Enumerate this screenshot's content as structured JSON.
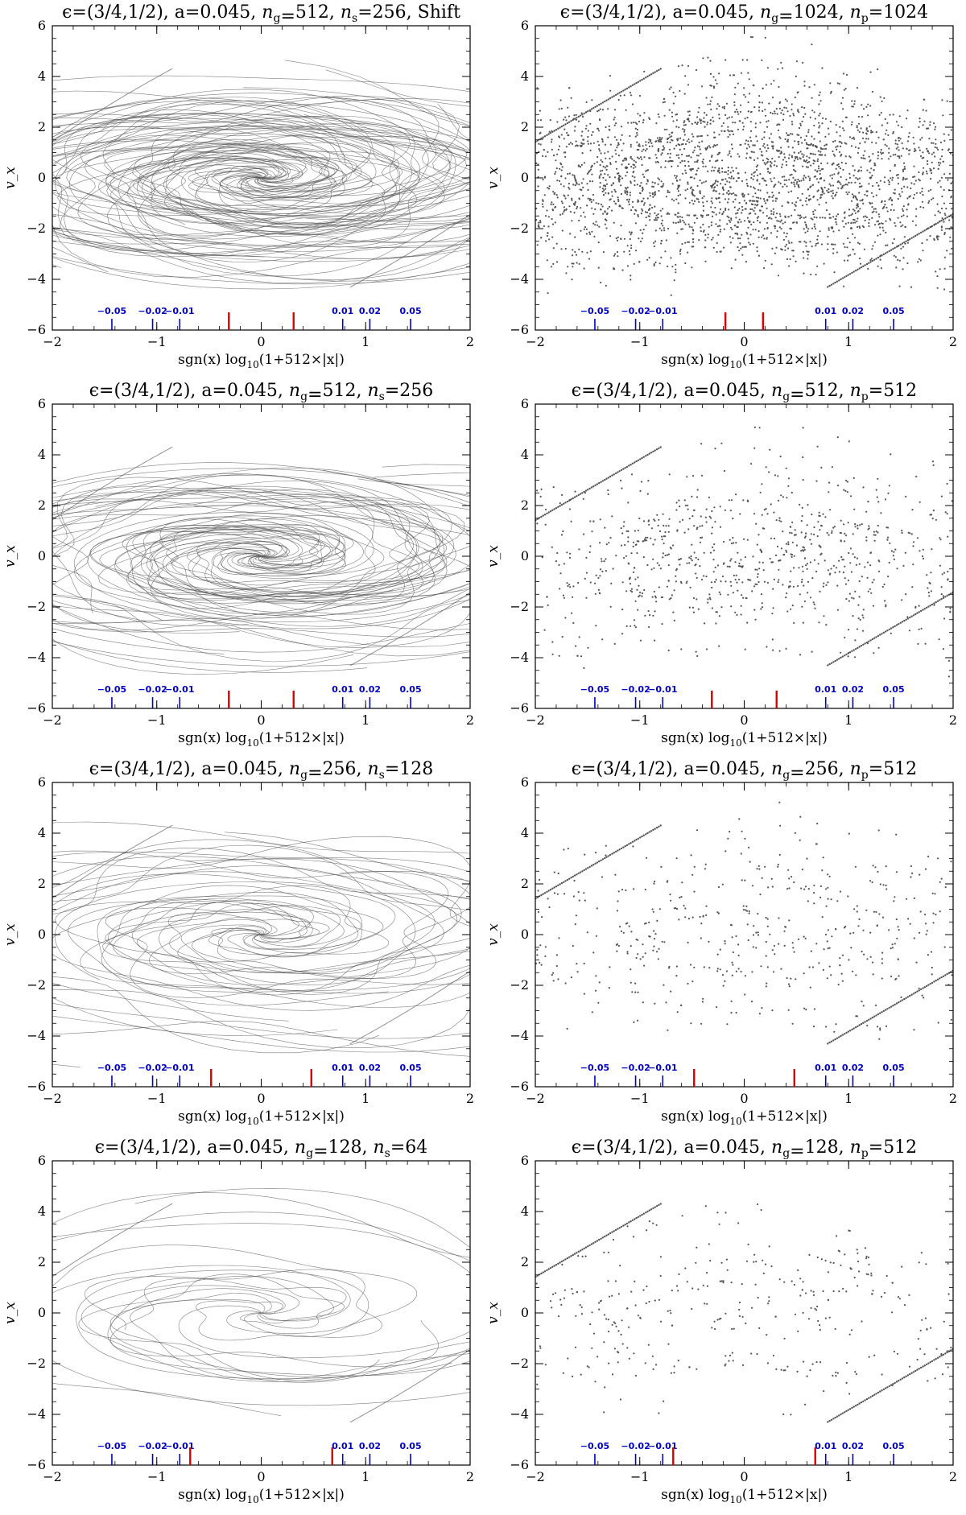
{
  "figure_colors": {
    "curve": "#555555",
    "blue_marker": "#0000cc",
    "red_marker": "#dd0000",
    "frame": "#000000"
  },
  "chart_data": [
    {
      "type": "line",
      "title": {
        "prefix": "ϵ=(3/4,1/2), a=0.045, ",
        "ng": "512",
        "sep": ", ",
        "nkind": "s",
        "nval": "256",
        "suffix": ", Shift"
      },
      "xlabel": {
        "pre": "sgn(x)  log",
        "sub": "10",
        "post": "(1+512×|x|)"
      },
      "ylabel": "v_x",
      "xlim": [
        -2,
        2
      ],
      "ylim": [
        -6,
        6
      ],
      "xticks": [
        -2,
        -1,
        0,
        1,
        2
      ],
      "yticks": [
        -6,
        -4,
        -2,
        0,
        2,
        4,
        6
      ],
      "xticklabels": [
        "−2",
        "−1",
        "0",
        "1",
        "2"
      ],
      "yticklabels": [
        "−6",
        "−4",
        "−2",
        "0",
        "2",
        "4",
        "6"
      ],
      "style": "curves",
      "spiral": {
        "arms": 34,
        "turns": 2.6,
        "rmax": 4.9,
        "density": 1.0
      },
      "blue_markers": [
        {
          "x": -1.43,
          "label": "−0.05"
        },
        {
          "x": -1.04,
          "label": "−0.02"
        },
        {
          "x": -0.78,
          "label": "−0.01"
        },
        {
          "x": 0.78,
          "label": "0.01"
        },
        {
          "x": 1.04,
          "label": "0.02"
        },
        {
          "x": 1.43,
          "label": "0.05"
        }
      ],
      "red_markers": [
        {
          "x": -0.31
        },
        {
          "x": 0.31
        }
      ]
    },
    {
      "type": "scatter",
      "title": {
        "prefix": "ϵ=(3/4,1/2), a=0.045, ",
        "ng": "1024",
        "sep": ", ",
        "nkind": "p",
        "nval": "1024",
        "suffix": ""
      },
      "xlabel": {
        "pre": "sgn(x)  log",
        "sub": "10",
        "post": "(1+512×|x|)"
      },
      "ylabel": "v_x",
      "xlim": [
        -2,
        2
      ],
      "ylim": [
        -6,
        6
      ],
      "xticks": [
        -2,
        -1,
        0,
        1,
        2
      ],
      "yticks": [
        -6,
        -4,
        -2,
        0,
        2,
        4,
        6
      ],
      "xticklabels": [
        "−2",
        "−1",
        "0",
        "1",
        "2"
      ],
      "yticklabels": [
        "−6",
        "−4",
        "−2",
        "0",
        "2",
        "4",
        "6"
      ],
      "style": "points",
      "spiral": {
        "arms": 40,
        "turns": 2.6,
        "rmax": 5.0,
        "density": 1.0
      },
      "blue_markers": [
        {
          "x": -1.43,
          "label": "−0.05"
        },
        {
          "x": -1.04,
          "label": "−0.02"
        },
        {
          "x": -0.78,
          "label": "−0.01"
        },
        {
          "x": 0.78,
          "label": "0.01"
        },
        {
          "x": 1.04,
          "label": "0.02"
        },
        {
          "x": 1.43,
          "label": "0.05"
        }
      ],
      "red_markers": [
        {
          "x": -0.18
        },
        {
          "x": 0.18
        }
      ]
    },
    {
      "type": "line",
      "title": {
        "prefix": "ϵ=(3/4,1/2), a=0.045, ",
        "ng": "512",
        "sep": ", ",
        "nkind": "s",
        "nval": "256",
        "suffix": ""
      },
      "xlabel": {
        "pre": "sgn(x)  log",
        "sub": "10",
        "post": "(1+512×|x|)"
      },
      "ylabel": "v_x",
      "xlim": [
        -2,
        2
      ],
      "ylim": [
        -6,
        6
      ],
      "xticks": [
        -2,
        -1,
        0,
        1,
        2
      ],
      "yticks": [
        -6,
        -4,
        -2,
        0,
        2,
        4,
        6
      ],
      "xticklabels": [
        "−2",
        "−1",
        "0",
        "1",
        "2"
      ],
      "yticklabels": [
        "−6",
        "−4",
        "−2",
        "0",
        "2",
        "4",
        "6"
      ],
      "style": "curves",
      "spiral": {
        "arms": 30,
        "turns": 2.4,
        "rmax": 4.8,
        "density": 0.9
      },
      "blue_markers": [
        {
          "x": -1.43,
          "label": "−0.05"
        },
        {
          "x": -1.04,
          "label": "−0.02"
        },
        {
          "x": -0.78,
          "label": "−0.01"
        },
        {
          "x": 0.78,
          "label": "0.01"
        },
        {
          "x": 1.04,
          "label": "0.02"
        },
        {
          "x": 1.43,
          "label": "0.05"
        }
      ],
      "red_markers": [
        {
          "x": -0.31
        },
        {
          "x": 0.31
        }
      ]
    },
    {
      "type": "scatter",
      "title": {
        "prefix": "ϵ=(3/4,1/2), a=0.045, ",
        "ng": "512",
        "sep": ", ",
        "nkind": "p",
        "nval": "512",
        "suffix": ""
      },
      "xlabel": {
        "pre": "sgn(x)  log",
        "sub": "10",
        "post": "(1+512×|x|)"
      },
      "ylabel": "v_x",
      "xlim": [
        -2,
        2
      ],
      "ylim": [
        -6,
        6
      ],
      "xticks": [
        -2,
        -1,
        0,
        1,
        2
      ],
      "yticks": [
        -6,
        -4,
        -2,
        0,
        2,
        4,
        6
      ],
      "xticklabels": [
        "−2",
        "−1",
        "0",
        "1",
        "2"
      ],
      "yticklabels": [
        "−6",
        "−4",
        "−2",
        "0",
        "2",
        "4",
        "6"
      ],
      "style": "points",
      "spiral": {
        "arms": 26,
        "turns": 2.4,
        "rmax": 4.9,
        "density": 0.5
      },
      "blue_markers": [
        {
          "x": -1.43,
          "label": "−0.05"
        },
        {
          "x": -1.04,
          "label": "−0.02"
        },
        {
          "x": -0.78,
          "label": "−0.01"
        },
        {
          "x": 0.78,
          "label": "0.01"
        },
        {
          "x": 1.04,
          "label": "0.02"
        },
        {
          "x": 1.43,
          "label": "0.05"
        }
      ],
      "red_markers": [
        {
          "x": -0.31
        },
        {
          "x": 0.31
        }
      ]
    },
    {
      "type": "line",
      "title": {
        "prefix": "ϵ=(3/4,1/2), a=0.045, ",
        "ng": "256",
        "sep": ", ",
        "nkind": "s",
        "nval": "128",
        "suffix": ""
      },
      "xlabel": {
        "pre": "sgn(x)  log",
        "sub": "10",
        "post": "(1+512×|x|)"
      },
      "ylabel": "v_x",
      "xlim": [
        -2,
        2
      ],
      "ylim": [
        -6,
        6
      ],
      "xticks": [
        -2,
        -1,
        0,
        1,
        2
      ],
      "yticks": [
        -6,
        -4,
        -2,
        0,
        2,
        4,
        6
      ],
      "xticklabels": [
        "−2",
        "−1",
        "0",
        "1",
        "2"
      ],
      "yticklabels": [
        "−6",
        "−4",
        "−2",
        "0",
        "2",
        "4",
        "6"
      ],
      "style": "curves",
      "spiral": {
        "arms": 20,
        "turns": 2.1,
        "rmax": 5.1,
        "density": 0.7
      },
      "blue_markers": [
        {
          "x": -1.43,
          "label": "−0.05"
        },
        {
          "x": -1.04,
          "label": "−0.02"
        },
        {
          "x": -0.78,
          "label": "−0.01"
        },
        {
          "x": 0.78,
          "label": "0.01"
        },
        {
          "x": 1.04,
          "label": "0.02"
        },
        {
          "x": 1.43,
          "label": "0.05"
        }
      ],
      "red_markers": [
        {
          "x": -0.48
        },
        {
          "x": 0.48
        }
      ]
    },
    {
      "type": "scatter",
      "title": {
        "prefix": "ϵ=(3/4,1/2), a=0.045, ",
        "ng": "256",
        "sep": ", ",
        "nkind": "p",
        "nval": "512",
        "suffix": ""
      },
      "xlabel": {
        "pre": "sgn(x)  log",
        "sub": "10",
        "post": "(1+512×|x|)"
      },
      "ylabel": "v_x",
      "xlim": [
        -2,
        2
      ],
      "ylim": [
        -6,
        6
      ],
      "xticks": [
        -2,
        -1,
        0,
        1,
        2
      ],
      "yticks": [
        -6,
        -4,
        -2,
        0,
        2,
        4,
        6
      ],
      "xticklabels": [
        "−2",
        "−1",
        "0",
        "1",
        "2"
      ],
      "yticklabels": [
        "−6",
        "−4",
        "−2",
        "0",
        "2",
        "4",
        "6"
      ],
      "style": "points",
      "spiral": {
        "arms": 20,
        "turns": 2.1,
        "rmax": 4.9,
        "density": 0.4
      },
      "blue_markers": [
        {
          "x": -1.43,
          "label": "−0.05"
        },
        {
          "x": -1.04,
          "label": "−0.02"
        },
        {
          "x": -0.78,
          "label": "−0.01"
        },
        {
          "x": 0.78,
          "label": "0.01"
        },
        {
          "x": 1.04,
          "label": "0.02"
        },
        {
          "x": 1.43,
          "label": "0.05"
        }
      ],
      "red_markers": [
        {
          "x": -0.48
        },
        {
          "x": 0.48
        }
      ]
    },
    {
      "type": "line",
      "title": {
        "prefix": "ϵ=(3/4,1/2), a=0.045, ",
        "ng": "128",
        "sep": ", ",
        "nkind": "s",
        "nval": "64",
        "suffix": ""
      },
      "xlabel": {
        "pre": "sgn(x)  log",
        "sub": "10",
        "post": "(1+512×|x|)"
      },
      "ylabel": "v_x",
      "xlim": [
        -2,
        2
      ],
      "ylim": [
        -6,
        6
      ],
      "xticks": [
        -2,
        -1,
        0,
        1,
        2
      ],
      "yticks": [
        -6,
        -4,
        -2,
        0,
        2,
        4,
        6
      ],
      "xticklabels": [
        "−2",
        "−1",
        "0",
        "1",
        "2"
      ],
      "yticklabels": [
        "−6",
        "−4",
        "−2",
        "0",
        "2",
        "4",
        "6"
      ],
      "style": "curves",
      "spiral": {
        "arms": 12,
        "turns": 1.7,
        "rmax": 4.8,
        "density": 0.5
      },
      "blue_markers": [
        {
          "x": -1.43,
          "label": "−0.05"
        },
        {
          "x": -1.04,
          "label": "−0.02"
        },
        {
          "x": -0.78,
          "label": "−0.01"
        },
        {
          "x": 0.78,
          "label": "0.01"
        },
        {
          "x": 1.04,
          "label": "0.02"
        },
        {
          "x": 1.43,
          "label": "0.05"
        }
      ],
      "red_markers": [
        {
          "x": -0.68
        },
        {
          "x": 0.68
        }
      ]
    },
    {
      "type": "scatter",
      "title": {
        "prefix": "ϵ=(3/4,1/2), a=0.045, ",
        "ng": "128",
        "sep": ", ",
        "nkind": "p",
        "nval": "512",
        "suffix": ""
      },
      "xlabel": {
        "pre": "sgn(x)  log",
        "sub": "10",
        "post": "(1+512×|x|)"
      },
      "ylabel": "v_x",
      "xlim": [
        -2,
        2
      ],
      "ylim": [
        -6,
        6
      ],
      "xticks": [
        -2,
        -1,
        0,
        1,
        2
      ],
      "yticks": [
        -6,
        -4,
        -2,
        0,
        2,
        4,
        6
      ],
      "xticklabels": [
        "−2",
        "−1",
        "0",
        "1",
        "2"
      ],
      "yticklabels": [
        "−6",
        "−4",
        "−2",
        "0",
        "2",
        "4",
        "6"
      ],
      "style": "points",
      "spiral": {
        "arms": 14,
        "turns": 1.7,
        "rmax": 4.7,
        "density": 0.35
      },
      "blue_markers": [
        {
          "x": -1.43,
          "label": "−0.05"
        },
        {
          "x": -1.04,
          "label": "−0.02"
        },
        {
          "x": -0.78,
          "label": "−0.01"
        },
        {
          "x": 0.78,
          "label": "0.01"
        },
        {
          "x": 1.04,
          "label": "0.02"
        },
        {
          "x": 1.43,
          "label": "0.05"
        }
      ],
      "red_markers": [
        {
          "x": -0.68
        },
        {
          "x": 0.68
        }
      ]
    }
  ]
}
